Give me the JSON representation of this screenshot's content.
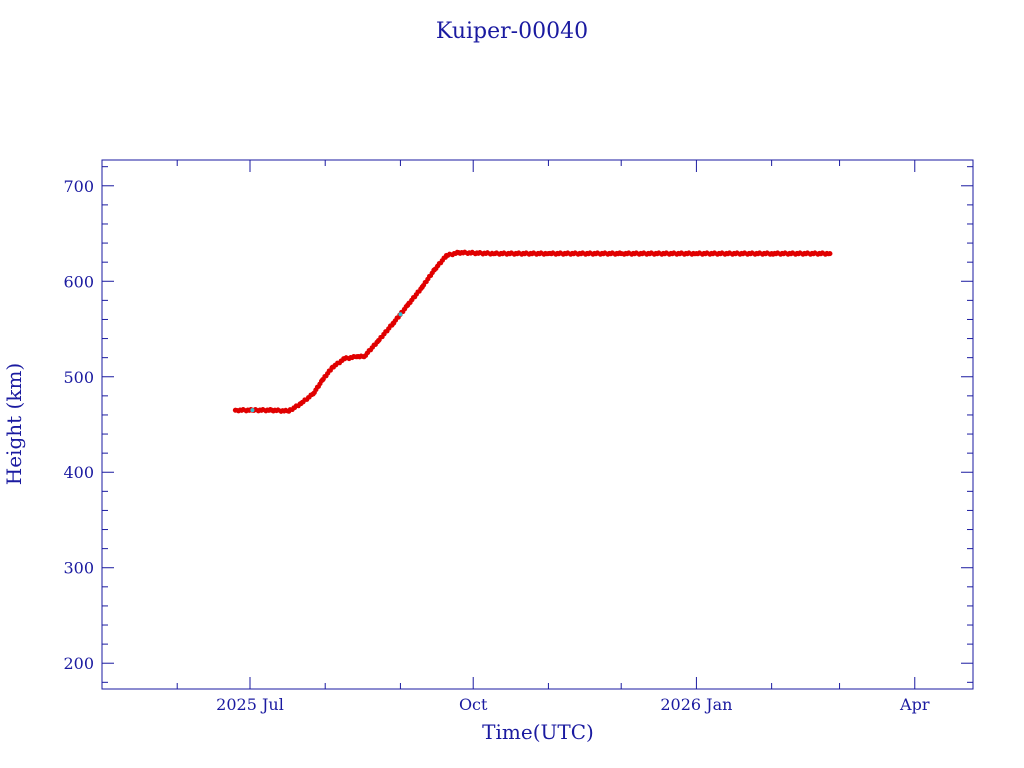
{
  "chart_data": {
    "type": "scatter",
    "title": "Kuiper-00040",
    "xlabel": "Time(UTC)",
    "ylabel": "Height (km)",
    "xlim": [
      "2025-05-01",
      "2026-04-25"
    ],
    "ylim": [
      173,
      727
    ],
    "x_ticks": [
      {
        "date": "2025-07-01",
        "label": "2025 Jul"
      },
      {
        "date": "2025-10-01",
        "label": "Oct"
      },
      {
        "date": "2026-01-01",
        "label": "2026 Jan"
      },
      {
        "date": "2026-04-01",
        "label": "Apr"
      }
    ],
    "y_ticks": [
      200,
      300,
      400,
      500,
      600,
      700
    ],
    "grid": false,
    "colors": {
      "axis": "#1a1aa0",
      "points": "#e00000",
      "highlight": "#30c0d0"
    },
    "series": [
      {
        "points": [
          [
            "2025-06-25",
            465
          ],
          [
            "2025-07-02",
            465
          ],
          [
            "2025-07-10",
            465
          ],
          [
            "2025-07-17",
            464
          ],
          [
            "2025-07-22",
            472
          ],
          [
            "2025-07-27",
            482
          ],
          [
            "2025-07-31",
            497
          ],
          [
            "2025-08-04",
            510
          ],
          [
            "2025-08-09",
            519
          ],
          [
            "2025-08-14",
            521
          ],
          [
            "2025-08-17",
            521
          ],
          [
            "2025-08-23",
            538
          ],
          [
            "2025-08-29",
            556
          ],
          [
            "2025-09-04",
            575
          ],
          [
            "2025-09-10",
            594
          ],
          [
            "2025-09-15",
            612
          ],
          [
            "2025-09-20",
            627
          ],
          [
            "2025-09-25",
            630
          ],
          [
            "2025-10-10",
            629
          ],
          [
            "2025-11-01",
            629
          ],
          [
            "2025-12-01",
            629
          ],
          [
            "2026-01-01",
            629
          ],
          [
            "2026-02-01",
            629
          ],
          [
            "2026-02-25",
            629
          ]
        ]
      }
    ]
  }
}
